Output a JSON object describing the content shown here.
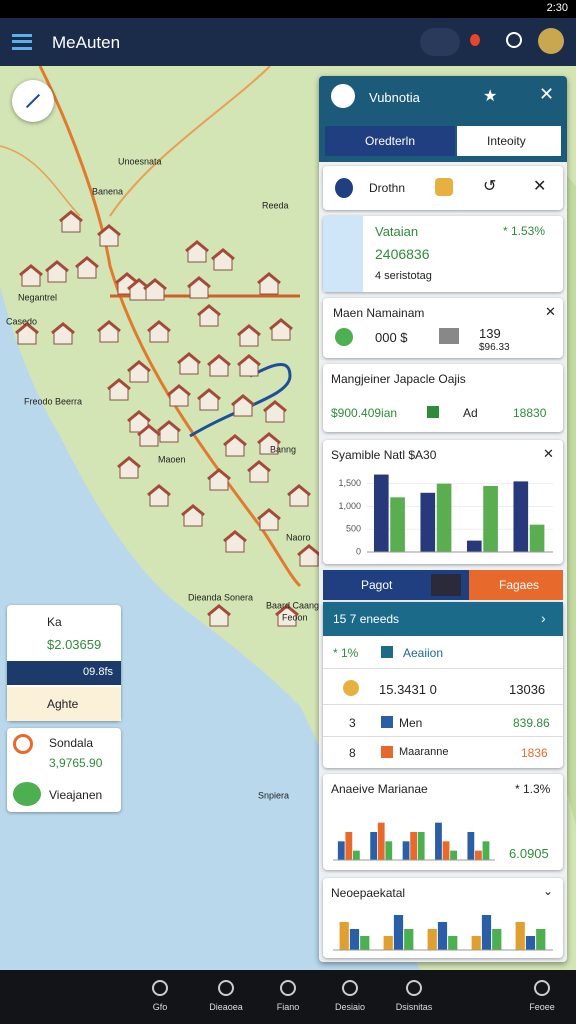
{
  "status_bar": {
    "time": "2:30"
  },
  "app_bar": {
    "title": "MeAuten"
  },
  "map": {
    "labels": [
      "Unoesnata",
      "Banena",
      "Reeda",
      "Negantrel",
      "Casedo",
      "Freodo Beerra",
      "Maoen",
      "Banng",
      "Naoro",
      "Dieanda Sonera",
      "Baard Caang",
      "Snpiera",
      "Feoon"
    ]
  },
  "left_cards": [
    {
      "title": "Ka",
      "value": "$2.03659",
      "band": "09.8fs",
      "action": "Aghte"
    },
    {
      "title": "Sondala",
      "value": "3,9765.90",
      "action": "Vieajanen"
    }
  ],
  "panel": {
    "title": "Vubnotia",
    "tabs": [
      "Oredterln",
      "Inteoity"
    ],
    "toolbar_label": "Drothn",
    "summary": {
      "title": "Vataian",
      "change": "* 1.53%",
      "value": "2406836",
      "note": "4 seristotag"
    },
    "metric": {
      "title": "Maen Namainam",
      "left": "000 $",
      "right": "139",
      "right_sub": "$96.33"
    },
    "detail": {
      "title": "Mangjeiner Japacle Oajis",
      "value": "$900.409ian",
      "tag": "Ad",
      "amount": "18830"
    },
    "bar_chart": {
      "title": "Syamible Natl $A30",
      "ylim": [
        0,
        1800
      ],
      "yticks": [
        0,
        500,
        {
          "value": 1000,
          "label": "1,000"
        },
        {
          "value": 1500,
          "label": "1,500"
        }
      ],
      "series": [
        {
          "color": "#27397a",
          "values": [
            1700,
            1300,
            250,
            1550
          ]
        },
        {
          "color": "#5aae4f",
          "values": [
            1200,
            1500,
            1450,
            600
          ]
        }
      ]
    },
    "tabs2": [
      "Pagot",
      "Fagaes"
    ],
    "list": {
      "title": "15 7 eneeds",
      "header_change": "* 1%",
      "header_label": "Aeaiion",
      "rows": [
        {
          "label": "15.3431 0",
          "value": "13036"
        },
        {
          "index": "3",
          "label": "Men",
          "value": "839.86"
        },
        {
          "index": "8",
          "label": "Maaranne",
          "value": "1836"
        }
      ]
    },
    "trend_card": {
      "title": "Anaeive Marianae",
      "change": "* 1.3%",
      "value": "6.0905",
      "ylim": [
        0,
        6
      ],
      "series": [
        {
          "color": "#2a5fa8",
          "values": [
            2,
            3,
            2,
            4,
            3
          ]
        },
        {
          "color": "#e8692c",
          "values": [
            3,
            4,
            3,
            2,
            1
          ]
        },
        {
          "color": "#4caf50",
          "values": [
            1,
            2,
            3,
            1,
            2
          ]
        }
      ]
    },
    "mini_card": {
      "title": "Neoepaekatal",
      "ylim": [
        0,
        6
      ],
      "series": [
        {
          "color": "#e0a030",
          "values": [
            4,
            2,
            3,
            2,
            4
          ]
        },
        {
          "color": "#2a5fa8",
          "values": [
            3,
            5,
            4,
            5,
            2
          ]
        },
        {
          "color": "#4caf50",
          "values": [
            2,
            3,
            2,
            3,
            3
          ]
        }
      ]
    }
  },
  "bottom_nav": [
    "Gfo",
    "Dieaoea",
    "Fiano",
    "Desiaio",
    "Dsisnitas",
    "Feoee"
  ]
}
